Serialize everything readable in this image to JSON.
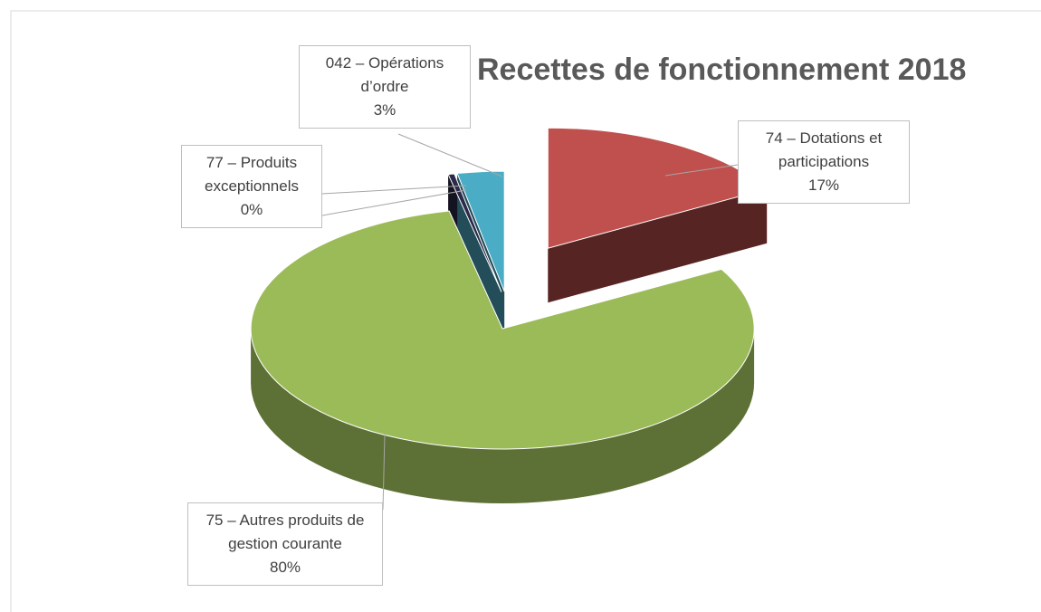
{
  "chart_data": {
    "type": "pie3d",
    "title": "Recettes de fonctionnement 2018",
    "categories": [
      "74 – Dotations et participations",
      "75 – Autres produits de gestion courante",
      "77 – Produits exceptionnels",
      "042 – Opérations d’ordre"
    ],
    "values": [
      16.8,
      79.8,
      0.4,
      3.0
    ],
    "value_labels": [
      "17%",
      "80%",
      "0%",
      "3%"
    ],
    "colors": [
      "#c0504d",
      "#9bbb59",
      "#2c2a4a",
      "#4bacc6"
    ]
  }
}
